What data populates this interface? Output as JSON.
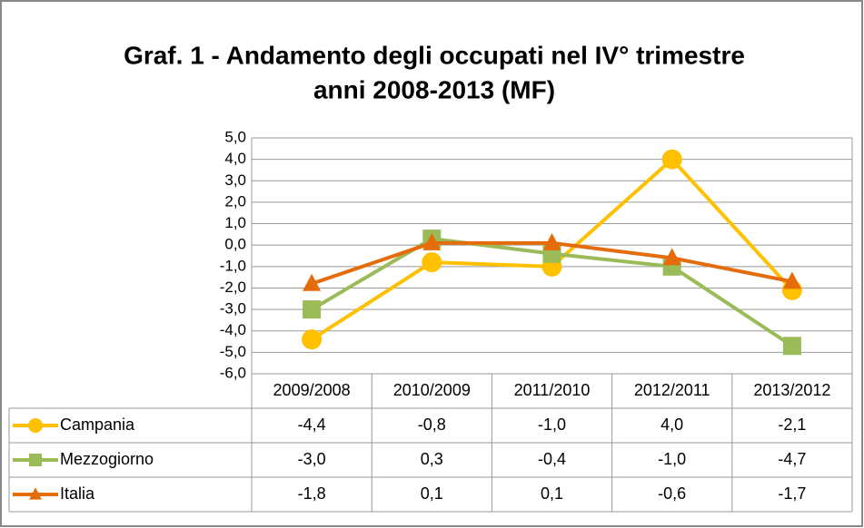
{
  "chart_data": {
    "type": "line",
    "title": [
      "Graf. 1 - Andamento degli occupati nel IV° trimestre",
      "anni 2008-2013 (MF)"
    ],
    "categories": [
      "2009/2008",
      "2010/2009",
      "2011/2010",
      "2012/2011",
      "2013/2012"
    ],
    "series": [
      {
        "name": "Campania",
        "color": "#FFC000",
        "marker": "circle",
        "values": [
          -4.4,
          -0.8,
          -1.0,
          4.0,
          -2.1
        ],
        "value_labels": [
          "-4,4",
          "-0,8",
          "-1,0",
          "4,0",
          "-2,1"
        ]
      },
      {
        "name": "Mezzogiorno",
        "color": "#9BBB59",
        "marker": "square",
        "values": [
          -3.0,
          0.3,
          -0.4,
          -1.0,
          -4.7
        ],
        "value_labels": [
          "-3,0",
          "0,3",
          "-0,4",
          "-1,0",
          "-4,7"
        ]
      },
      {
        "name": "Italia",
        "color": "#E46C0A",
        "marker": "triangle",
        "values": [
          -1.8,
          0.1,
          0.1,
          -0.6,
          -1.7
        ],
        "value_labels": [
          "-1,8",
          "0,1",
          "0,1",
          "-0,6",
          "-1,7"
        ]
      }
    ],
    "ylim": [
      -6,
      5
    ],
    "yticks": [
      {
        "value": 5,
        "label": "5,0"
      },
      {
        "value": 4,
        "label": "4,0"
      },
      {
        "value": 3,
        "label": "3,0"
      },
      {
        "value": 2,
        "label": "2,0"
      },
      {
        "value": 1,
        "label": "1,0"
      },
      {
        "value": 0,
        "label": "0,0"
      },
      {
        "value": -1,
        "label": "-1,0"
      },
      {
        "value": -2,
        "label": "-2,0"
      },
      {
        "value": -3,
        "label": "-3,0"
      },
      {
        "value": -4,
        "label": "-4,0"
      },
      {
        "value": -5,
        "label": "-5,0"
      },
      {
        "value": -6,
        "label": "-6,0"
      }
    ],
    "grid": true,
    "legend": "table"
  }
}
